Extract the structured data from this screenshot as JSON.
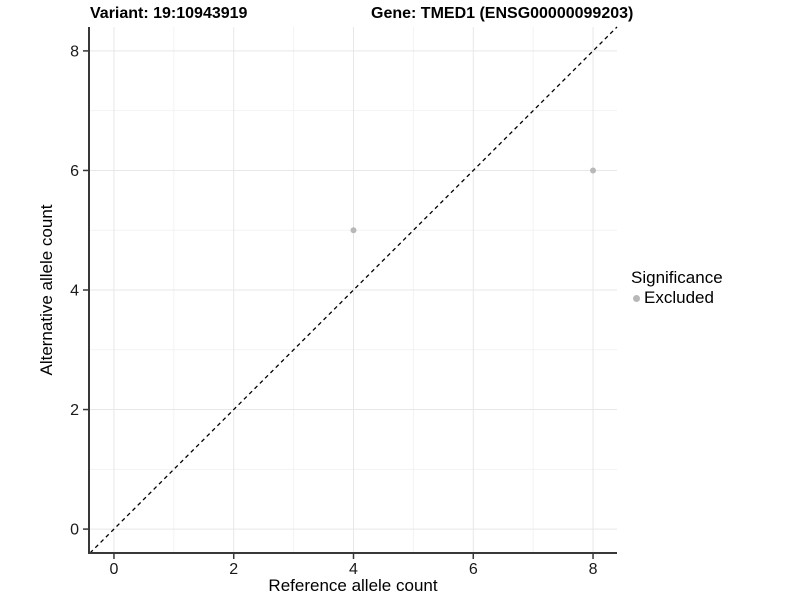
{
  "titles": {
    "variant": "Variant: 19:10943919",
    "gene": "Gene: TMED1 (ENSG00000099203)"
  },
  "legend": {
    "title": "Significance",
    "items": [
      {
        "label": "Excluded",
        "color": "#b8b8b8"
      }
    ]
  },
  "chart_data": {
    "type": "scatter",
    "title": "Variant: 19:10943919   Gene: TMED1 (ENSG00000099203)",
    "xlabel": "Reference allele count",
    "ylabel": "Alternative allele count",
    "xlim": [
      -0.4,
      8.4
    ],
    "ylim": [
      -0.4,
      8.4
    ],
    "x_ticks": [
      0,
      2,
      4,
      6,
      8
    ],
    "y_ticks": [
      0,
      2,
      4,
      6,
      8
    ],
    "x_minor_ticks": [
      1,
      3,
      5,
      7
    ],
    "y_minor_ticks": [
      1,
      3,
      5,
      7
    ],
    "grid": true,
    "legend_position": "right",
    "series": [
      {
        "name": "Excluded",
        "color": "#b8b8b8",
        "points": [
          {
            "x": 4,
            "y": 5
          },
          {
            "x": 8,
            "y": 6
          }
        ]
      }
    ],
    "reference_line": {
      "type": "identity",
      "equation": "y = x",
      "style": "dashed",
      "color": "#000000"
    }
  },
  "colors": {
    "background": "#ffffff",
    "grid_major": "#e7e7e7",
    "grid_minor": "#f3f3f3",
    "axis": "#383838",
    "tick_label": "#1a1a1a",
    "point": "#b8b8b8",
    "identity_line": "#000000"
  }
}
